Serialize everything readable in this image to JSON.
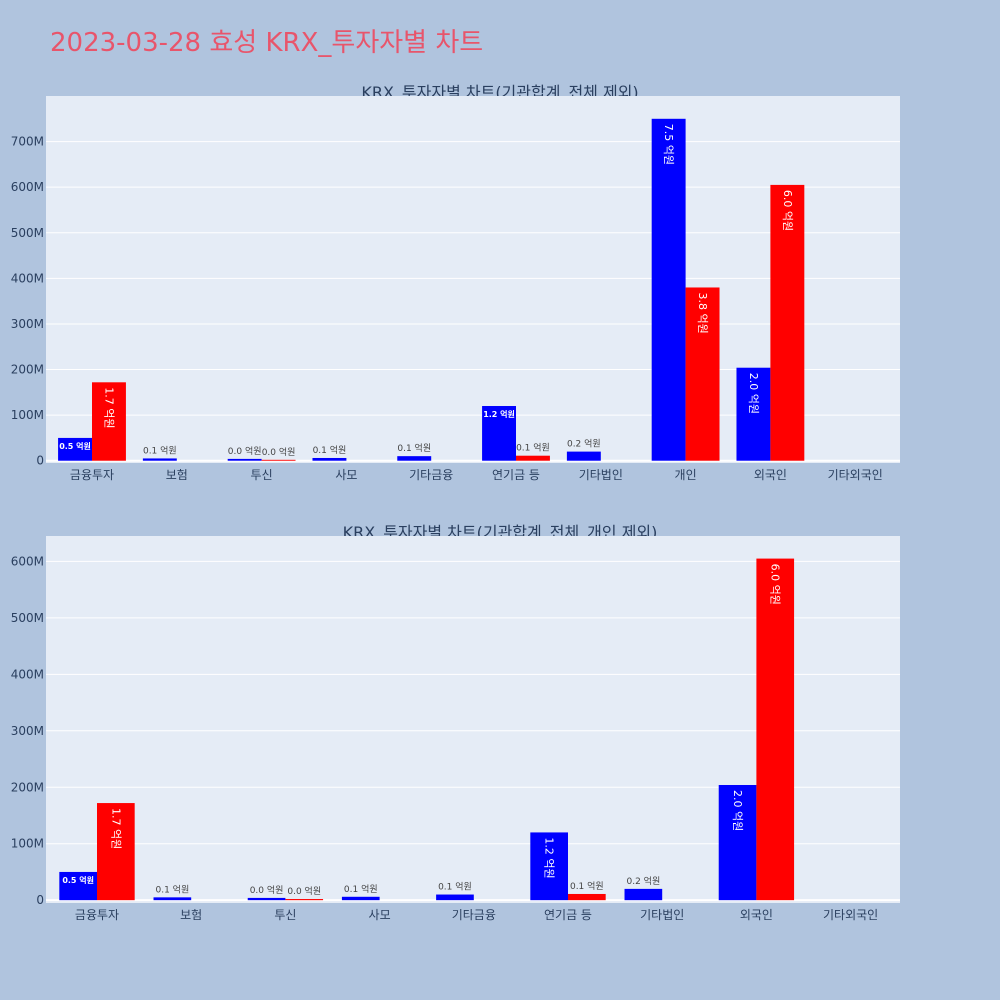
{
  "page_title": "2023-03-28 효성 KRX_투자자별 차트",
  "colors": {
    "buy": "#0000ff",
    "sell": "#ff0000",
    "plot_bg": "#e5ecf6",
    "page_bg": "#b0c4de",
    "title": "#e8556b"
  },
  "chart_data": [
    {
      "type": "bar",
      "title": "KRX_투자자별 차트(기관합계_전체 제외)",
      "categories": [
        "금융투자",
        "보험",
        "투신",
        "사모",
        "기타금융",
        "연기금 등",
        "기타법인",
        "개인",
        "외국인",
        "기타외국인"
      ],
      "series": [
        {
          "color": "#0000ff",
          "values": [
            50000000,
            5000000,
            4000000,
            6000000,
            10000000,
            120000000,
            20000000,
            750000000,
            204000000,
            0
          ],
          "labels": [
            "0.5 억원",
            "0.1 억원",
            "0.0 억원",
            "0.1 억원",
            "0.1 억원",
            "1.2 억원",
            "0.2 억원",
            "7.5 억원",
            "2.0 억원",
            ""
          ]
        },
        {
          "color": "#ff0000",
          "values": [
            172000000,
            0,
            2000000,
            0,
            0,
            11000000,
            0,
            380000000,
            605000000,
            0
          ],
          "labels": [
            "1.7 억원",
            "",
            "0.0 억원",
            "",
            "",
            "0.1 억원",
            "",
            "3.8 억원",
            "6.0 억원",
            ""
          ]
        }
      ],
      "yticks": [
        0,
        100000000,
        200000000,
        300000000,
        400000000,
        500000000,
        600000000,
        700000000
      ],
      "ytick_labels": [
        "0",
        "100M",
        "200M",
        "300M",
        "400M",
        "500M",
        "600M",
        "700M"
      ],
      "ylim": [
        -5000000,
        800000000
      ],
      "grid": true
    },
    {
      "type": "bar",
      "title": "KRX_투자자별 차트(기관합계_전체_개인 제외)",
      "categories": [
        "금융투자",
        "보험",
        "투신",
        "사모",
        "기타금융",
        "연기금 등",
        "기타법인",
        "외국인",
        "기타외국인"
      ],
      "series": [
        {
          "color": "#0000ff",
          "values": [
            50000000,
            5000000,
            4000000,
            6000000,
            10000000,
            120000000,
            20000000,
            204000000,
            0
          ],
          "labels": [
            "0.5 억원",
            "0.1 억원",
            "0.0 억원",
            "0.1 억원",
            "0.1 억원",
            "1.2 억원",
            "0.2 억원",
            "2.0 억원",
            ""
          ]
        },
        {
          "color": "#ff0000",
          "values": [
            172000000,
            0,
            2000000,
            0,
            0,
            11000000,
            0,
            605000000,
            0
          ],
          "labels": [
            "1.7 억원",
            "",
            "0.0 억원",
            "",
            "",
            "0.1 억원",
            "",
            "6.0 억원",
            ""
          ]
        }
      ],
      "yticks": [
        0,
        100000000,
        200000000,
        300000000,
        400000000,
        500000000,
        600000000
      ],
      "ytick_labels": [
        "0",
        "100M",
        "200M",
        "300M",
        "400M",
        "500M",
        "600M"
      ],
      "ylim": [
        -5000000,
        645000000
      ],
      "grid": true
    }
  ]
}
